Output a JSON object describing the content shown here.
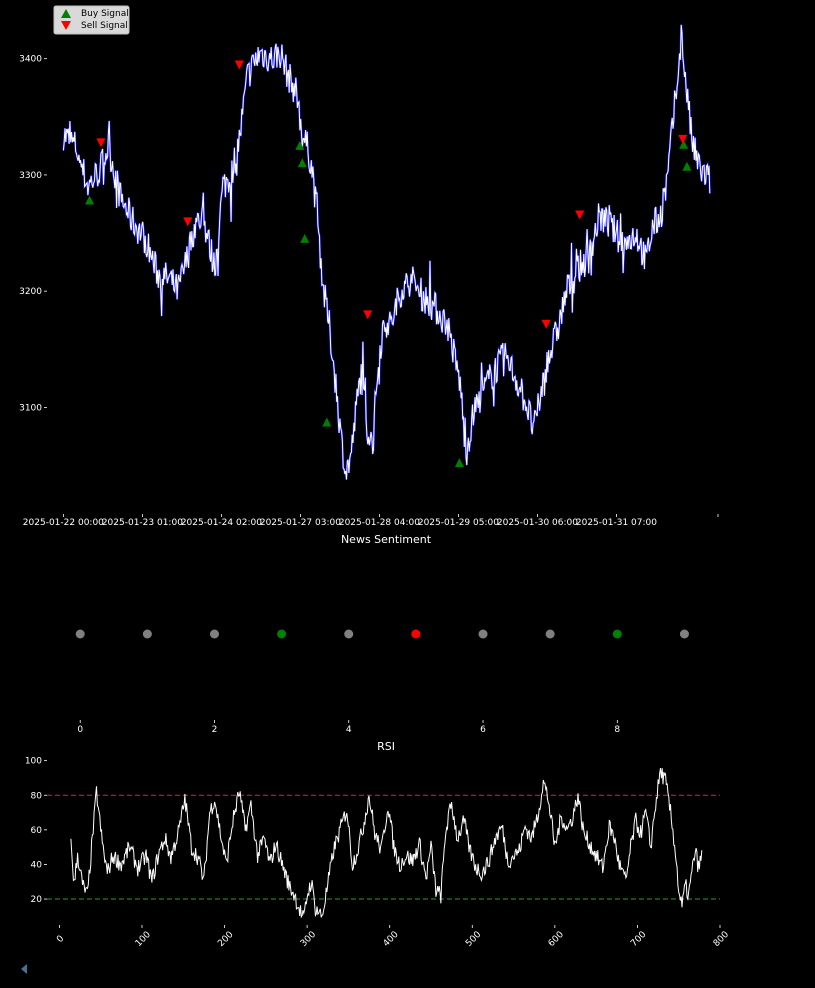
{
  "colors": {
    "background": "#000000",
    "text": "#ffffff",
    "price_line": "#ffffff",
    "price_shadow": "#1a1aff",
    "buy": "#008000",
    "sell": "#ff0000",
    "neutral": "#808080",
    "overbought": "#d62728",
    "oversold": "#2ca02c"
  },
  "icons": {
    "back": "triangle-left-icon"
  },
  "chart_data": [
    {
      "type": "line",
      "title": "",
      "legend": {
        "placement": "top-left",
        "entries": [
          "Buy Signal",
          "Sell Signal"
        ]
      },
      "x_tick_labels": [
        "2025-01-22 00:00",
        "2025-01-23 01:00",
        "2025-01-24 02:00",
        "2025-01-27 03:00",
        "2025-01-28 04:00",
        "2025-01-29 05:00",
        "2025-01-30 06:00",
        "2025-01-31 07:00"
      ],
      "y_ticks": [
        3100,
        3200,
        3300,
        3400
      ],
      "ylim": [
        3010,
        3435
      ],
      "xlim": [
        -20,
        800
      ],
      "series_price_keypoints": [
        [
          0,
          3335
        ],
        [
          15,
          3325
        ],
        [
          30,
          3290
        ],
        [
          45,
          3305
        ],
        [
          55,
          3325
        ],
        [
          70,
          3280
        ],
        [
          85,
          3260
        ],
        [
          100,
          3245
        ],
        [
          115,
          3215
        ],
        [
          130,
          3210
        ],
        [
          140,
          3200
        ],
        [
          150,
          3225
        ],
        [
          160,
          3255
        ],
        [
          170,
          3265
        ],
        [
          185,
          3220
        ],
        [
          195,
          3290
        ],
        [
          205,
          3300
        ],
        [
          215,
          3330
        ],
        [
          225,
          3385
        ],
        [
          240,
          3405
        ],
        [
          255,
          3400
        ],
        [
          265,
          3405
        ],
        [
          275,
          3385
        ],
        [
          285,
          3370
        ],
        [
          292,
          3335
        ],
        [
          300,
          3320
        ],
        [
          305,
          3300
        ],
        [
          312,
          3250
        ],
        [
          318,
          3200
        ],
        [
          325,
          3170
        ],
        [
          333,
          3120
        ],
        [
          340,
          3070
        ],
        [
          346,
          3045
        ],
        [
          352,
          3060
        ],
        [
          358,
          3100
        ],
        [
          364,
          3130
        ],
        [
          372,
          3080
        ],
        [
          378,
          3070
        ],
        [
          385,
          3140
        ],
        [
          392,
          3175
        ],
        [
          400,
          3170
        ],
        [
          412,
          3200
        ],
        [
          425,
          3210
        ],
        [
          440,
          3195
        ],
        [
          455,
          3185
        ],
        [
          470,
          3170
        ],
        [
          485,
          3120
        ],
        [
          492,
          3060
        ],
        [
          500,
          3090
        ],
        [
          510,
          3110
        ],
        [
          525,
          3130
        ],
        [
          540,
          3145
        ],
        [
          553,
          3125
        ],
        [
          565,
          3105
        ],
        [
          575,
          3080
        ],
        [
          590,
          3135
        ],
        [
          605,
          3170
        ],
        [
          615,
          3200
        ],
        [
          630,
          3220
        ],
        [
          643,
          3230
        ],
        [
          655,
          3265
        ],
        [
          670,
          3255
        ],
        [
          685,
          3240
        ],
        [
          700,
          3250
        ],
        [
          712,
          3225
        ],
        [
          720,
          3255
        ],
        [
          730,
          3265
        ],
        [
          738,
          3295
        ],
        [
          745,
          3345
        ],
        [
          750,
          3380
        ],
        [
          755,
          3420
        ],
        [
          760,
          3385
        ],
        [
          768,
          3330
        ],
        [
          775,
          3310
        ],
        [
          783,
          3300
        ],
        [
          790,
          3295
        ]
      ],
      "buy_signals": [
        [
          32,
          3278
        ],
        [
          289,
          3325
        ],
        [
          292,
          3310
        ],
        [
          295,
          3245
        ],
        [
          322,
          3087
        ],
        [
          484,
          3052
        ],
        [
          758,
          3326
        ],
        [
          762,
          3307
        ]
      ],
      "sell_signals": [
        [
          46,
          3328
        ],
        [
          152,
          3260
        ],
        [
          215,
          3395
        ],
        [
          372,
          3180
        ],
        [
          590,
          3172
        ],
        [
          631,
          3266
        ],
        [
          757,
          3331
        ]
      ]
    },
    {
      "type": "scatter",
      "title": "News Sentiment",
      "x": [
        0,
        1,
        2,
        3,
        4,
        5,
        6,
        7,
        8,
        9
      ],
      "y": [
        0,
        0,
        0,
        0,
        0,
        0,
        0,
        0,
        0,
        0
      ],
      "sentiment": [
        "neutral",
        "neutral",
        "neutral",
        "positive",
        "neutral",
        "negative",
        "neutral",
        "neutral",
        "positive",
        "neutral"
      ],
      "x_ticks": [
        0,
        2,
        4,
        6,
        8
      ],
      "xlim": [
        -0.45,
        9.5
      ]
    },
    {
      "type": "line",
      "title": "RSI",
      "x_ticks": [
        0,
        100,
        200,
        300,
        400,
        500,
        600,
        700,
        800
      ],
      "y_ticks": [
        20,
        40,
        60,
        80,
        100
      ],
      "xlim": [
        -15,
        800
      ],
      "ylim": [
        5,
        105
      ],
      "hlines": [
        {
          "y": 80,
          "style": "dashed",
          "color": "#d62728"
        },
        {
          "y": 20,
          "style": "dashed",
          "color": "#2ca02c"
        }
      ],
      "series_rsi_keypoints": [
        [
          14,
          53
        ],
        [
          18,
          28
        ],
        [
          22,
          46
        ],
        [
          28,
          28
        ],
        [
          34,
          22
        ],
        [
          40,
          55
        ],
        [
          45,
          82
        ],
        [
          52,
          52
        ],
        [
          58,
          35
        ],
        [
          65,
          45
        ],
        [
          75,
          40
        ],
        [
          85,
          50
        ],
        [
          95,
          38
        ],
        [
          105,
          45
        ],
        [
          112,
          30
        ],
        [
          120,
          46
        ],
        [
          128,
          55
        ],
        [
          135,
          44
        ],
        [
          145,
          60
        ],
        [
          152,
          78
        ],
        [
          160,
          50
        ],
        [
          168,
          44
        ],
        [
          175,
          30
        ],
        [
          182,
          70
        ],
        [
          188,
          78
        ],
        [
          195,
          58
        ],
        [
          202,
          40
        ],
        [
          210,
          65
        ],
        [
          218,
          82
        ],
        [
          225,
          60
        ],
        [
          232,
          74
        ],
        [
          240,
          45
        ],
        [
          248,
          55
        ],
        [
          255,
          40
        ],
        [
          262,
          52
        ],
        [
          270,
          40
        ],
        [
          278,
          28
        ],
        [
          285,
          22
        ],
        [
          290,
          15
        ],
        [
          296,
          8
        ],
        [
          300,
          22
        ],
        [
          305,
          30
        ],
        [
          310,
          15
        ],
        [
          318,
          10
        ],
        [
          325,
          28
        ],
        [
          332,
          48
        ],
        [
          340,
          60
        ],
        [
          348,
          72
        ],
        [
          355,
          40
        ],
        [
          362,
          50
        ],
        [
          368,
          62
        ],
        [
          375,
          80
        ],
        [
          382,
          58
        ],
        [
          390,
          48
        ],
        [
          398,
          75
        ],
        [
          405,
          50
        ],
        [
          412,
          40
        ],
        [
          420,
          45
        ],
        [
          428,
          42
        ],
        [
          436,
          52
        ],
        [
          444,
          32
        ],
        [
          450,
          50
        ],
        [
          456,
          25
        ],
        [
          462,
          22
        ],
        [
          468,
          60
        ],
        [
          475,
          75
        ],
        [
          482,
          55
        ],
        [
          490,
          65
        ],
        [
          497,
          48
        ],
        [
          505,
          38
        ],
        [
          512,
          35
        ],
        [
          520,
          42
        ],
        [
          528,
          55
        ],
        [
          536,
          62
        ],
        [
          543,
          42
        ],
        [
          550,
          45
        ],
        [
          557,
          48
        ],
        [
          564,
          62
        ],
        [
          572,
          55
        ],
        [
          580,
          70
        ],
        [
          586,
          88
        ],
        [
          592,
          78
        ],
        [
          600,
          50
        ],
        [
          608,
          68
        ],
        [
          615,
          60
        ],
        [
          622,
          68
        ],
        [
          628,
          80
        ],
        [
          635,
          58
        ],
        [
          642,
          52
        ],
        [
          650,
          45
        ],
        [
          658,
          38
        ],
        [
          666,
          62
        ],
        [
          672,
          55
        ],
        [
          678,
          40
        ],
        [
          686,
          30
        ],
        [
          692,
          50
        ],
        [
          698,
          65
        ],
        [
          704,
          58
        ],
        [
          710,
          70
        ],
        [
          716,
          50
        ],
        [
          722,
          75
        ],
        [
          728,
          94
        ],
        [
          734,
          88
        ],
        [
          740,
          70
        ],
        [
          746,
          48
        ],
        [
          750,
          25
        ],
        [
          754,
          15
        ],
        [
          758,
          28
        ],
        [
          762,
          22
        ],
        [
          766,
          35
        ],
        [
          770,
          48
        ],
        [
          774,
          38
        ],
        [
          778,
          45
        ]
      ]
    }
  ]
}
